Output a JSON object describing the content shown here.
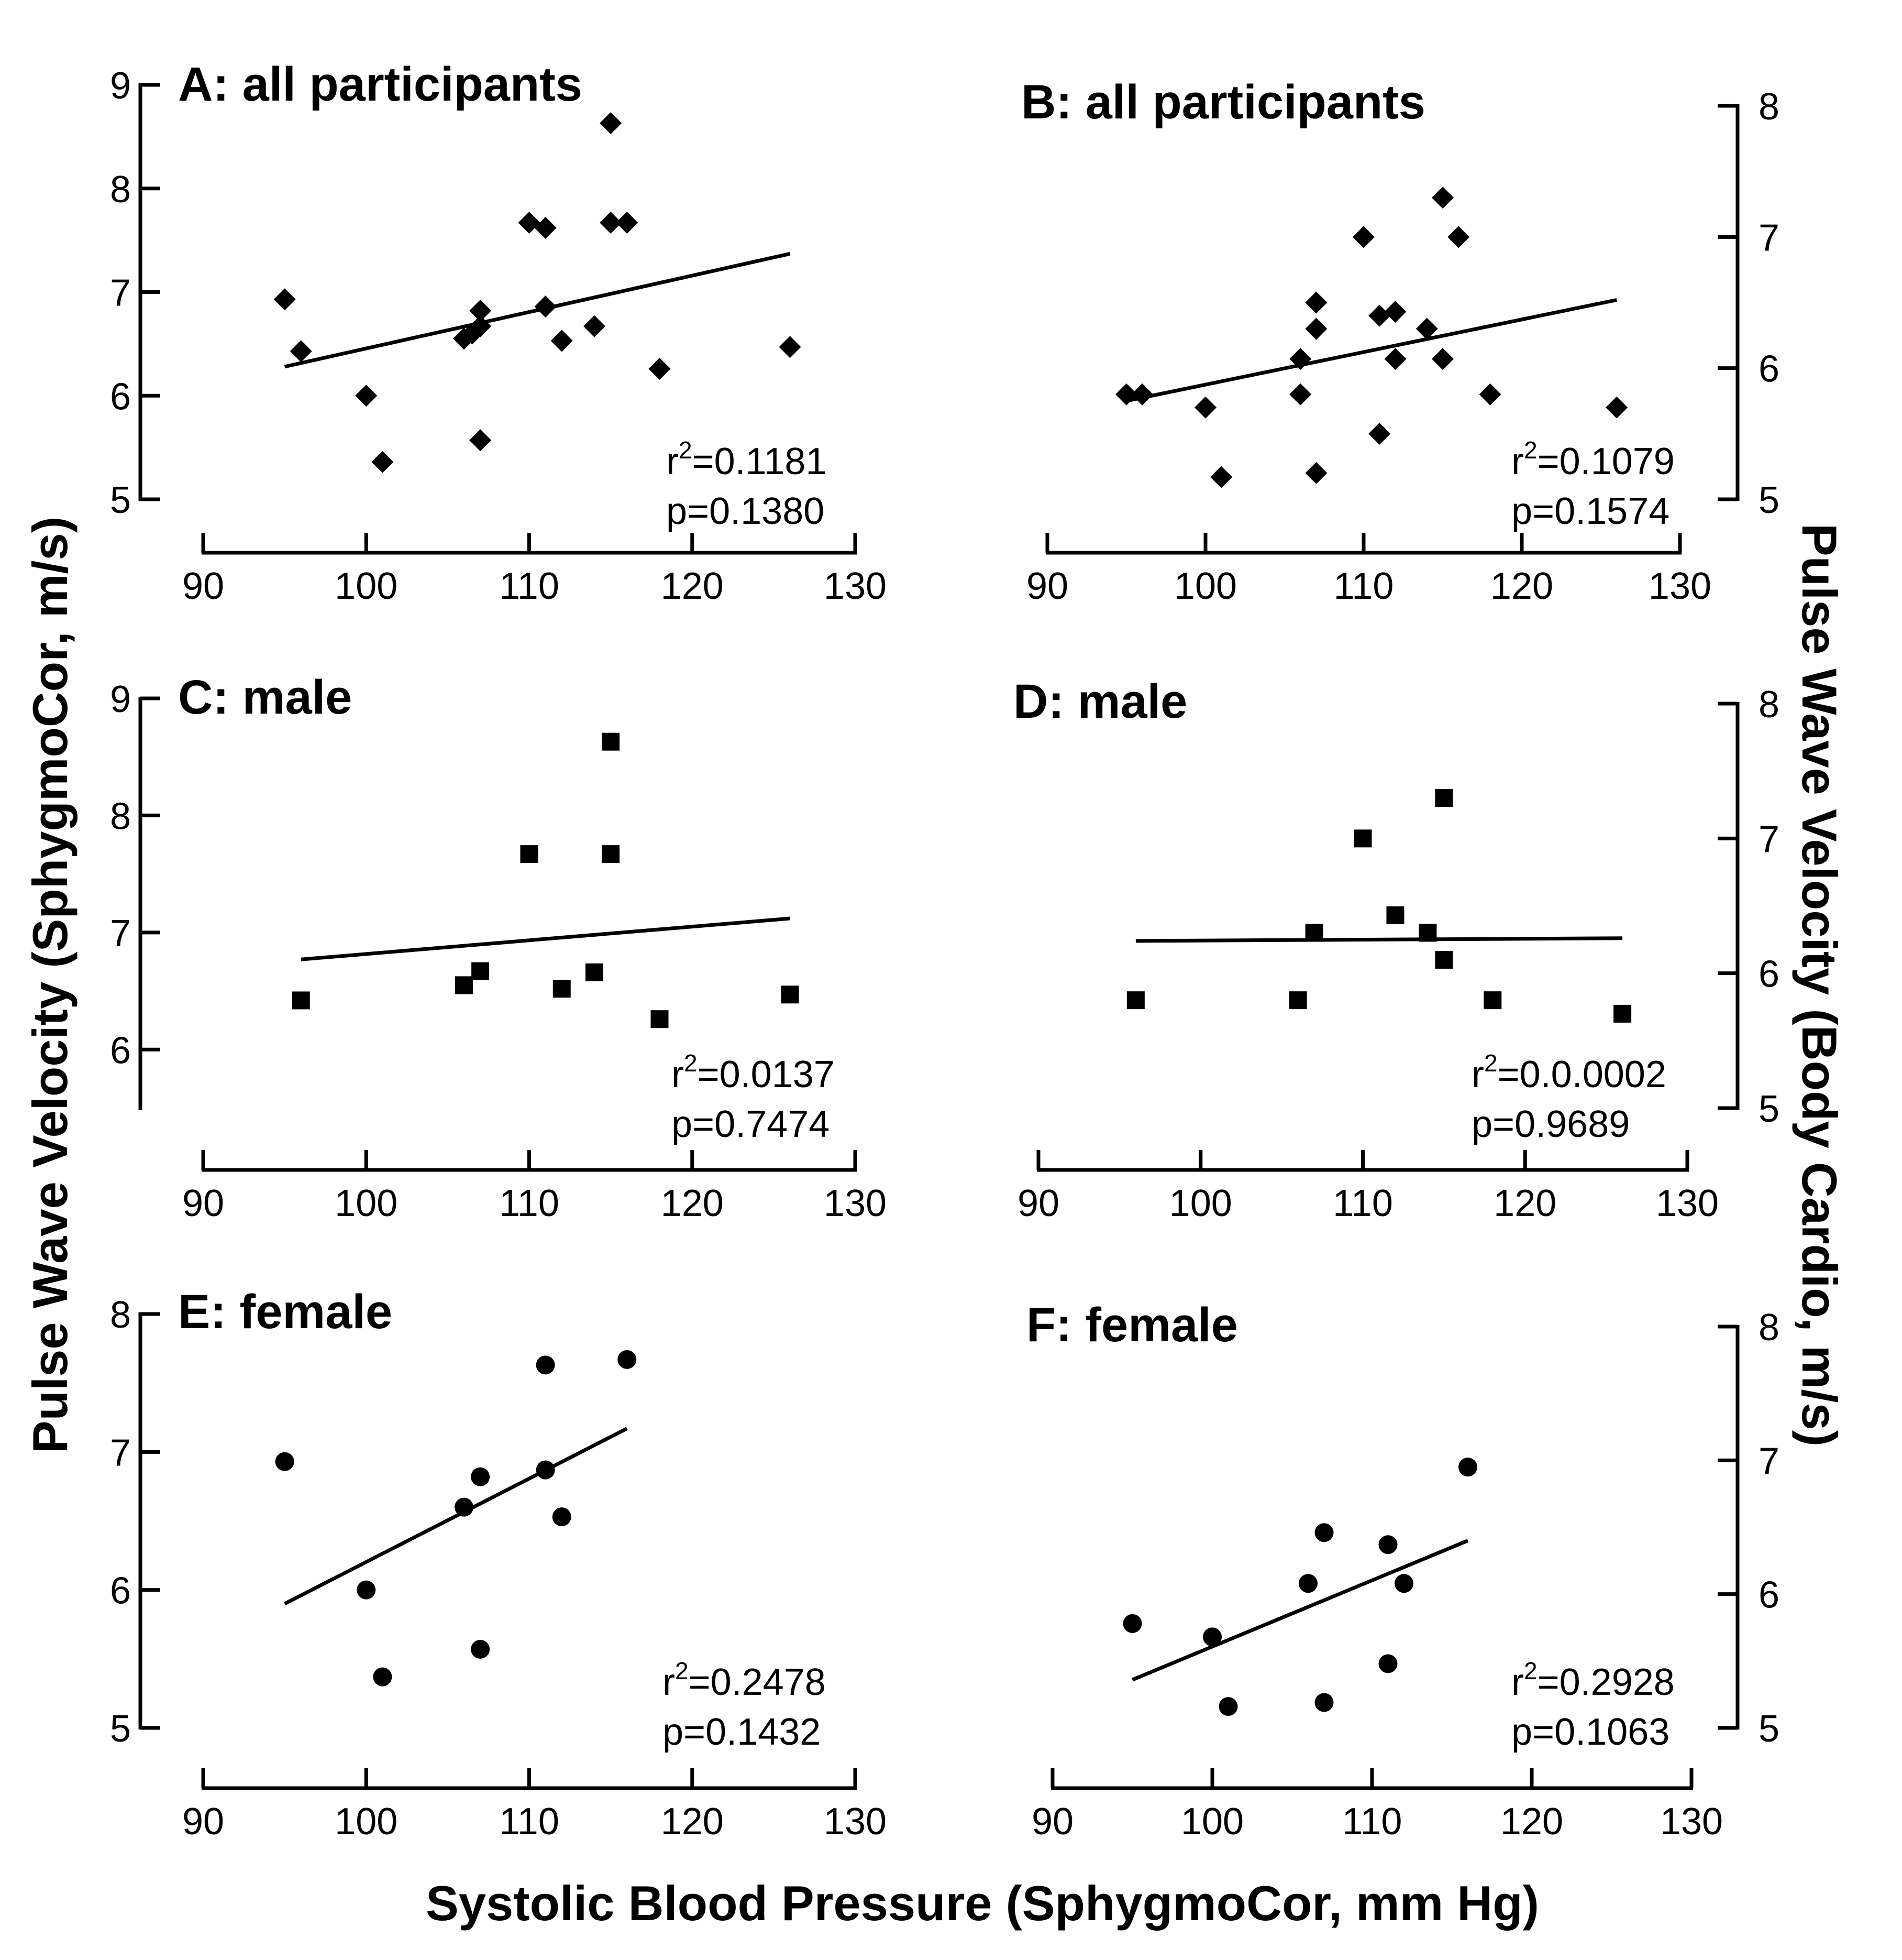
{
  "figure": {
    "xlabel": "Systolic Blood Pressure (SphygmoCor, mm Hg)",
    "ylabel_left": "Pulse Wave Velocity (SphygmoCor, m/s)",
    "ylabel_right": "Pulse Wave Velocity (Body Cardio, m/s)"
  },
  "chart_data": [
    {
      "id": "A",
      "type": "scatter",
      "title": "A: all participants",
      "marker": "diamond",
      "xlim": [
        90,
        130
      ],
      "xticks": [
        90,
        100,
        110,
        120,
        130
      ],
      "ylim": [
        5,
        9
      ],
      "yticks": [
        5,
        6,
        7,
        8,
        9
      ],
      "yaxis_side": "left",
      "points": [
        [
          95,
          6.93
        ],
        [
          96,
          6.43
        ],
        [
          100,
          6.0
        ],
        [
          101,
          5.36
        ],
        [
          106,
          6.55
        ],
        [
          106.5,
          6.6
        ],
        [
          107,
          6.82
        ],
        [
          107,
          6.67
        ],
        [
          107,
          5.57
        ],
        [
          110,
          7.67
        ],
        [
          111,
          7.62
        ],
        [
          111,
          6.86
        ],
        [
          112,
          6.53
        ],
        [
          114,
          6.67
        ],
        [
          115,
          8.63
        ],
        [
          115,
          7.67
        ],
        [
          116,
          7.67
        ],
        [
          118,
          6.26
        ],
        [
          126,
          6.47
        ]
      ],
      "fit": [
        [
          95,
          6.28
        ],
        [
          126,
          7.37
        ]
      ],
      "r2_prefix": "r",
      "r2_exp": "2",
      "r2_value": "=0.1181",
      "p_text": "p=0.1380"
    },
    {
      "id": "B",
      "type": "scatter",
      "title": "B: all participants",
      "marker": "diamond",
      "xlim": [
        90,
        130
      ],
      "xticks": [
        90,
        100,
        110,
        120,
        130
      ],
      "ylim": [
        5,
        8
      ],
      "yticks": [
        5,
        6,
        7,
        8
      ],
      "yaxis_side": "right",
      "points": [
        [
          95,
          5.8
        ],
        [
          96,
          5.8
        ],
        [
          100,
          5.7
        ],
        [
          101,
          5.17
        ],
        [
          106,
          6.07
        ],
        [
          106,
          5.8
        ],
        [
          107,
          6.5
        ],
        [
          107,
          6.3
        ],
        [
          107,
          5.2
        ],
        [
          110,
          7.0
        ],
        [
          111,
          6.4
        ],
        [
          111,
          5.5
        ],
        [
          112,
          6.43
        ],
        [
          112,
          6.07
        ],
        [
          114,
          6.3
        ],
        [
          115,
          7.3
        ],
        [
          115,
          6.07
        ],
        [
          116,
          7.0
        ],
        [
          118,
          5.8
        ],
        [
          126,
          5.7
        ]
      ],
      "fit": [
        [
          95,
          5.75
        ],
        [
          126,
          6.52
        ]
      ],
      "r2_prefix": "r",
      "r2_exp": "2",
      "r2_value": "=0.1079",
      "p_text": "p=0.1574"
    },
    {
      "id": "C",
      "type": "scatter",
      "title": "C: male",
      "marker": "square",
      "xlim": [
        90,
        130
      ],
      "xticks": [
        90,
        100,
        110,
        120,
        130
      ],
      "ylim": [
        5.5,
        9
      ],
      "yticks": [
        6,
        7,
        8,
        9
      ],
      "yaxis_side": "left",
      "points": [
        [
          96,
          6.42
        ],
        [
          106,
          6.55
        ],
        [
          107,
          6.67
        ],
        [
          110,
          7.67
        ],
        [
          112,
          6.52
        ],
        [
          114,
          6.66
        ],
        [
          115,
          8.63
        ],
        [
          115,
          7.67
        ],
        [
          118,
          6.26
        ],
        [
          126,
          6.47
        ]
      ],
      "fit": [
        [
          96,
          6.77
        ],
        [
          126,
          7.12
        ]
      ],
      "r2_prefix": "r",
      "r2_exp": "2",
      "r2_value": "=0.0137",
      "p_text": "p=0.7474"
    },
    {
      "id": "D",
      "type": "scatter",
      "title": "D: male",
      "marker": "square",
      "xlim": [
        90,
        130
      ],
      "xticks": [
        90,
        100,
        110,
        120,
        130
      ],
      "ylim": [
        5,
        8
      ],
      "yticks": [
        5,
        6,
        7,
        8
      ],
      "yaxis_side": "right",
      "points": [
        [
          96,
          5.8
        ],
        [
          106,
          5.8
        ],
        [
          107,
          6.3
        ],
        [
          110,
          7.0
        ],
        [
          112,
          6.43
        ],
        [
          114,
          6.3
        ],
        [
          115,
          7.3
        ],
        [
          115,
          6.1
        ],
        [
          118,
          5.8
        ],
        [
          126,
          5.7
        ]
      ],
      "fit": [
        [
          96,
          6.24
        ],
        [
          126,
          6.26
        ]
      ],
      "r2_prefix": "r",
      "r2_exp": "2",
      "r2_value": "=0.0.0002",
      "p_text": "p=0.9689"
    },
    {
      "id": "E",
      "type": "scatter",
      "title": "E: female",
      "marker": "circle",
      "xlim": [
        90,
        130
      ],
      "xticks": [
        90,
        100,
        110,
        120,
        130
      ],
      "ylim": [
        5,
        8
      ],
      "yticks": [
        5,
        6,
        7,
        8
      ],
      "yaxis_side": "left",
      "points": [
        [
          95,
          6.93
        ],
        [
          100,
          6.0
        ],
        [
          101,
          5.37
        ],
        [
          106,
          6.6
        ],
        [
          107,
          6.82
        ],
        [
          107,
          5.57
        ],
        [
          111,
          7.63
        ],
        [
          111,
          6.87
        ],
        [
          112,
          6.53
        ],
        [
          116,
          7.67
        ]
      ],
      "fit": [
        [
          95,
          5.9
        ],
        [
          116,
          7.17
        ]
      ],
      "r2_prefix": "r",
      "r2_exp": "2",
      "r2_value": "=0.2478",
      "p_text": "p=0.1432"
    },
    {
      "id": "F",
      "type": "scatter",
      "title": "F: female",
      "marker": "circle",
      "xlim": [
        90,
        130
      ],
      "xticks": [
        90,
        100,
        110,
        120,
        130
      ],
      "ylim": [
        5,
        8
      ],
      "yticks": [
        5,
        6,
        7,
        8
      ],
      "yaxis_side": "right",
      "points": [
        [
          95,
          5.78
        ],
        [
          100,
          5.68
        ],
        [
          101,
          5.16
        ],
        [
          106,
          6.08
        ],
        [
          107,
          6.46
        ],
        [
          107,
          5.19
        ],
        [
          111,
          6.37
        ],
        [
          111,
          5.48
        ],
        [
          112,
          6.08
        ],
        [
          116,
          6.95
        ]
      ],
      "fit": [
        [
          95,
          5.36
        ],
        [
          116,
          6.4
        ]
      ],
      "r2_prefix": "r",
      "r2_exp": "2",
      "r2_value": "=0.2928",
      "p_text": "p=0.1063"
    }
  ]
}
